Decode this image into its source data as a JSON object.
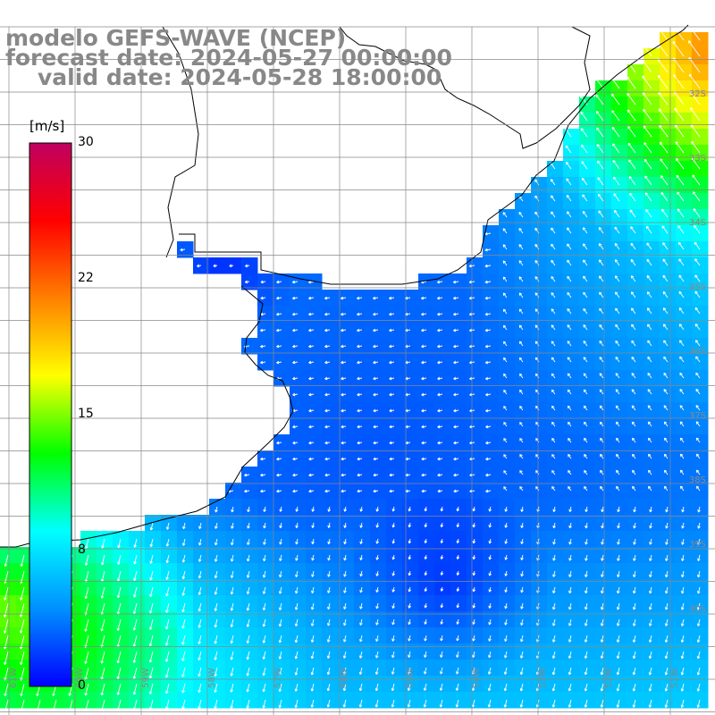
{
  "header": {
    "title": "modelo GEFS-WAVE (NCEP)",
    "forecast": "forecast date: 2024-05-27 00:00:00",
    "valid": "valid date: 2024-05-28 18:00:00"
  },
  "colorbar": {
    "unit": "[m/s]",
    "ticks": [
      "30",
      "22",
      "15",
      "8",
      "0"
    ],
    "range": [
      0,
      30
    ],
    "colors": [
      "#0000ff",
      "#0090ff",
      "#00ffff",
      "#00ff00",
      "#ffff00",
      "#ff8000",
      "#ff0000",
      "#c00060"
    ]
  },
  "axes": {
    "lat_labels": [
      "32S",
      "33S",
      "34S",
      "35S",
      "36S",
      "37S",
      "38S",
      "39S",
      "40S"
    ],
    "lon_labels": [
      "61W",
      "60W",
      "59W",
      "58W",
      "57W",
      "56W",
      "55W",
      "54W",
      "53W",
      "52W",
      "51W"
    ],
    "grid": true
  },
  "colors": {
    "land": "#ffffff",
    "coastline": "#000000",
    "grid": "#888888",
    "label": "#888888",
    "arrow": "#ffffff"
  },
  "field": {
    "variable": "wind speed",
    "units": "m/s"
  }
}
